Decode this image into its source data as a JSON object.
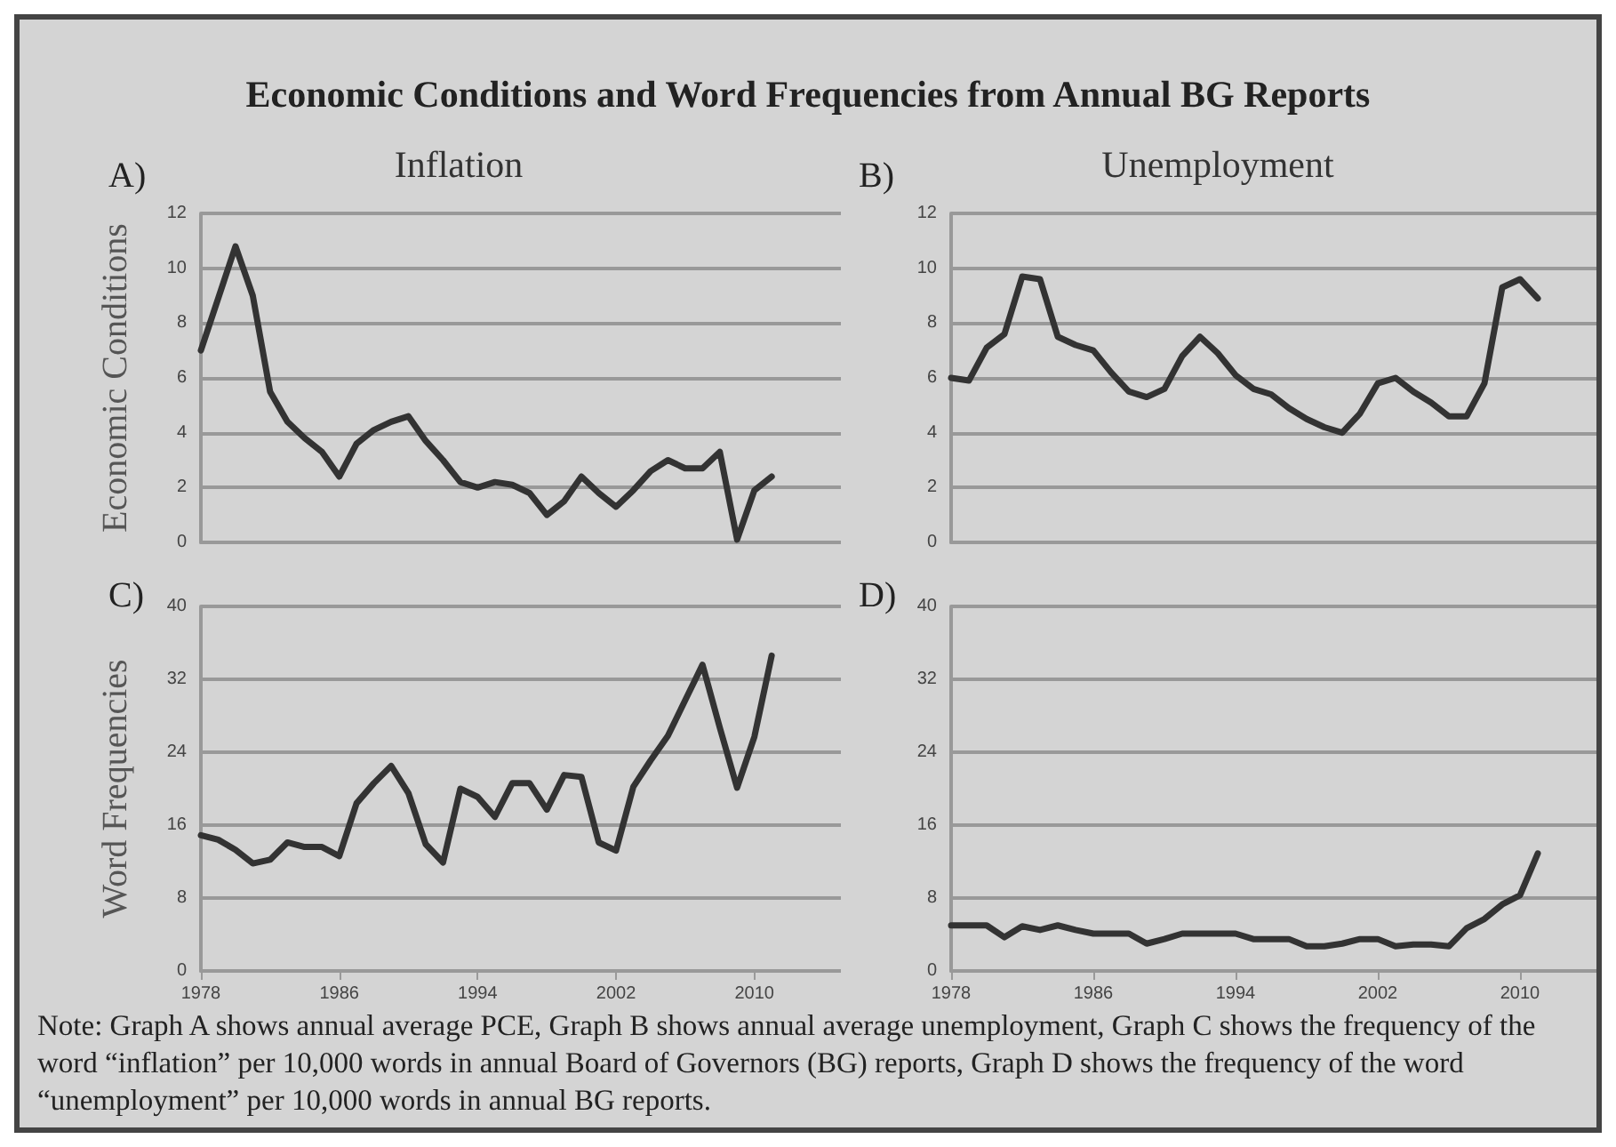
{
  "chart_data": [
    {
      "type": "line",
      "title": "Inflation",
      "ylabel": "Economic Conditions",
      "annotations": [
        "A)",
        "Economic Conditions and Word Frequencies from Annual BG Reports"
      ],
      "x": [
        1978,
        1979,
        1980,
        1981,
        1982,
        1983,
        1984,
        1985,
        1986,
        1987,
        1988,
        1989,
        1990,
        1991,
        1992,
        1993,
        1994,
        1995,
        1996,
        1997,
        1998,
        1999,
        2000,
        2001,
        2002,
        2003,
        2004,
        2005,
        2006,
        2007,
        2008,
        2009,
        2010,
        2011
      ],
      "series": [
        {
          "color": "#333333",
          "values": [
            7.0,
            8.9,
            10.8,
            9.0,
            5.5,
            4.4,
            3.8,
            3.3,
            2.4,
            3.6,
            4.1,
            4.4,
            4.6,
            3.7,
            3.0,
            2.2,
            2.0,
            2.2,
            2.1,
            1.8,
            1.0,
            1.5,
            2.4,
            1.8,
            1.3,
            1.9,
            2.6,
            3.0,
            2.7,
            2.7,
            3.3,
            0.1,
            1.9,
            2.4
          ]
        }
      ],
      "xlim": [
        1978,
        2015
      ],
      "xticks": [
        1978,
        1986,
        1994,
        2002,
        2010
      ],
      "ylim": [
        0,
        12
      ],
      "yticks": [
        0,
        2,
        4,
        6,
        8,
        10,
        12
      ],
      "grid": "y",
      "tick_labels": "y",
      "marker": "none",
      "line_style": "solid"
    },
    {
      "type": "line",
      "title": "Unemployment",
      "annotations": [
        "B)"
      ],
      "x": [
        1978,
        1979,
        1980,
        1981,
        1982,
        1983,
        1984,
        1985,
        1986,
        1987,
        1988,
        1989,
        1990,
        1991,
        1992,
        1993,
        1994,
        1995,
        1996,
        1997,
        1998,
        1999,
        2000,
        2001,
        2002,
        2003,
        2004,
        2005,
        2006,
        2007,
        2008,
        2009,
        2010,
        2011
      ],
      "series": [
        {
          "color": "#333333",
          "values": [
            6.0,
            5.9,
            7.1,
            7.6,
            9.7,
            9.6,
            7.5,
            7.2,
            7.0,
            6.2,
            5.5,
            5.3,
            5.6,
            6.8,
            7.5,
            6.9,
            6.1,
            5.6,
            5.4,
            4.9,
            4.5,
            4.2,
            4.0,
            4.7,
            5.8,
            6.0,
            5.5,
            5.1,
            4.6,
            4.6,
            5.8,
            9.3,
            9.6,
            8.9
          ]
        }
      ],
      "xlim": [
        1978,
        2015
      ],
      "xticks": [
        1978,
        1986,
        1994,
        2002,
        2010
      ],
      "ylim": [
        0,
        12
      ],
      "yticks": [
        0,
        2,
        4,
        6,
        8,
        10,
        12
      ],
      "grid": "y",
      "tick_labels": "y",
      "marker": "none",
      "line_style": "solid"
    },
    {
      "type": "line",
      "ylabel": "Word Frequencies",
      "annotations": [
        "C)"
      ],
      "x": [
        1978,
        1979,
        1980,
        1981,
        1982,
        1983,
        1984,
        1985,
        1986,
        1987,
        1988,
        1989,
        1990,
        1991,
        1992,
        1993,
        1994,
        1995,
        1996,
        1997,
        1998,
        1999,
        2000,
        2001,
        2002,
        2003,
        2004,
        2005,
        2006,
        2007,
        2008,
        2009,
        2010,
        2011
      ],
      "series": [
        {
          "color": "#333333",
          "values": [
            14.9,
            14.4,
            13.3,
            11.8,
            12.2,
            14.1,
            13.6,
            13.6,
            12.6,
            18.4,
            20.6,
            22.5,
            19.5,
            13.9,
            11.9,
            20.0,
            19.1,
            16.9,
            20.6,
            20.6,
            17.7,
            21.5,
            21.3,
            14.1,
            13.2,
            20.2,
            23.1,
            25.8,
            29.7,
            33.6,
            26.7,
            20.1,
            25.7,
            34.6
          ]
        }
      ],
      "xlim": [
        1978,
        2015
      ],
      "xticks": [
        1978,
        1986,
        1994,
        2002,
        2010
      ],
      "ylim": [
        0,
        40
      ],
      "yticks": [
        0,
        8,
        16,
        24,
        32,
        40
      ],
      "grid": "y",
      "marker": "none",
      "line_style": "solid"
    },
    {
      "type": "line",
      "annotations": [
        "D)",
        "Note: Graph A shows annual average PCE, Graph B shows annual average unemployment, Graph C shows the frequency of  the word “inflation” per 10,000 words in annual Board of Governors (BG) reports, Graph D shows the frequency of the word “unemployment” per 10,000 words in annual BG reports."
      ],
      "x": [
        1978,
        1979,
        1980,
        1981,
        1982,
        1983,
        1984,
        1985,
        1986,
        1987,
        1988,
        1989,
        1990,
        1991,
        1992,
        1993,
        1994,
        1995,
        1996,
        1997,
        1998,
        1999,
        2000,
        2001,
        2002,
        2003,
        2004,
        2005,
        2006,
        2007,
        2008,
        2009,
        2010,
        2011
      ],
      "series": [
        {
          "color": "#333333",
          "values": [
            5.0,
            5.0,
            5.0,
            3.7,
            4.9,
            4.5,
            5.0,
            4.5,
            4.1,
            4.1,
            4.1,
            3.0,
            3.5,
            4.1,
            4.1,
            4.1,
            4.1,
            3.5,
            3.5,
            3.5,
            2.7,
            2.7,
            3.0,
            3.5,
            3.5,
            2.7,
            2.9,
            2.9,
            2.7,
            4.7,
            5.7,
            7.3,
            8.3,
            12.9
          ]
        }
      ],
      "xlim": [
        1978,
        2015
      ],
      "xticks": [
        1978,
        1986,
        1994,
        2002,
        2010
      ],
      "ylim": [
        0,
        40
      ],
      "yticks": [
        0,
        8,
        16,
        24,
        32,
        40
      ],
      "grid": "y",
      "marker": "none",
      "line_style": "solid"
    }
  ]
}
